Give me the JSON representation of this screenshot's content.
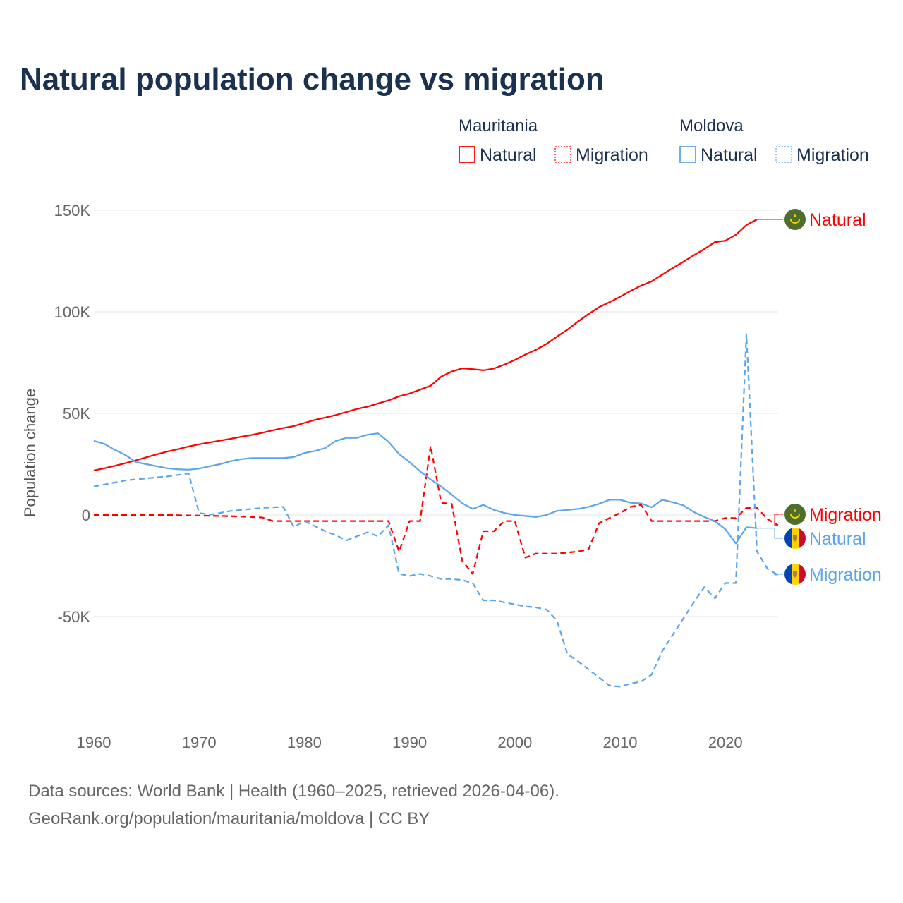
{
  "title": "Natural population change vs migration",
  "footer": {
    "line1": "Data sources: World Bank | Health (1960–2025, retrieved 2026-04-06).",
    "line2": "GeoRank.org/population/mauritania/moldova | CC BY"
  },
  "legend": {
    "groups": [
      {
        "country": "Mauritania",
        "color": "#ff0000",
        "items": [
          "Natural",
          "Migration"
        ]
      },
      {
        "country": "Moldova",
        "color": "#5aa5eb",
        "items": [
          "Natural",
          "Migration"
        ]
      }
    ]
  },
  "chart_data": {
    "type": "line",
    "title": "Natural population change vs migration",
    "xlabel": "",
    "ylabel": "Population change",
    "xlim": [
      1960,
      2025
    ],
    "ylim": [
      -100000,
      160000
    ],
    "x_ticks": [
      1960,
      1970,
      1980,
      1990,
      2000,
      2010,
      2020
    ],
    "y_ticks": [
      {
        "v": 150000,
        "label": "150K"
      },
      {
        "v": 100000,
        "label": "100K"
      },
      {
        "v": 50000,
        "label": "50K"
      },
      {
        "v": 0,
        "label": "0"
      },
      {
        "v": -50000,
        "label": "-50K"
      }
    ],
    "grid": true,
    "series": [
      {
        "name": "Mauritania Natural",
        "label": "Natural",
        "country": "mauritania",
        "color": "#ff0000",
        "dash": false,
        "start": 1960,
        "values": [
          21900,
          23000,
          24200,
          25500,
          26900,
          28400,
          29900,
          31200,
          32400,
          33700,
          34800,
          35700,
          36600,
          37500,
          38500,
          39400,
          40500,
          41700,
          42800,
          43800,
          45300,
          46800,
          48000,
          49200,
          50700,
          52200,
          53300,
          54900,
          56400,
          58400,
          59800,
          61700,
          63600,
          68100,
          70600,
          72200,
          71800,
          71200,
          72100,
          74000,
          76300,
          79000,
          81300,
          84200,
          87800,
          91200,
          95200,
          98900,
          102300,
          104800,
          107400,
          110300,
          112900,
          115000,
          118300,
          121500,
          124600,
          127800,
          130900,
          134300,
          135000,
          137900,
          142700,
          145500
        ]
      },
      {
        "name": "Mauritania Migration",
        "label": "Migration",
        "country": "mauritania",
        "color": "#ff0000",
        "dash": true,
        "start": 1960,
        "values": [
          0,
          0,
          0,
          0,
          0,
          0,
          0,
          0,
          -100,
          -200,
          -300,
          -400,
          -500,
          -600,
          -800,
          -1000,
          -1200,
          -3000,
          -3000,
          -3000,
          -3000,
          -3000,
          -3000,
          -3000,
          -3000,
          -3000,
          -3000,
          -3000,
          -3000,
          -18000,
          -3000,
          -3000,
          34000,
          6000,
          5500,
          -22500,
          -29000,
          -8000,
          -8000,
          -3000,
          -3000,
          -21000,
          -19000,
          -19000,
          -19000,
          -18500,
          -18000,
          -17000,
          -4000,
          -1500,
          1000,
          4000,
          5000,
          -3000,
          -3000,
          -3000,
          -3000,
          -3000,
          -3000,
          -3000,
          -1500,
          -1500,
          3500,
          3500,
          -2000,
          -5000
        ]
      },
      {
        "name": "Moldova Natural",
        "label": "Natural",
        "country": "moldova",
        "color": "#5aa5eb",
        "dash": false,
        "start": 1960,
        "values": [
          36500,
          35000,
          32000,
          29500,
          26000,
          25000,
          24000,
          23000,
          22500,
          22300,
          22800,
          24000,
          25000,
          26500,
          27500,
          28000,
          28000,
          28000,
          28000,
          28500,
          30500,
          31500,
          33000,
          36500,
          38000,
          38000,
          39500,
          40200,
          36000,
          30000,
          26000,
          21500,
          17500,
          14000,
          10000,
          5800,
          3000,
          5000,
          2500,
          1000,
          0,
          -500,
          -1000,
          0,
          2000,
          2500,
          3000,
          4000,
          5500,
          7500,
          7500,
          6000,
          5700,
          3800,
          7500,
          6300,
          4800,
          1500,
          -1000,
          -3000,
          -7000,
          -14000,
          -6000,
          -6500
        ]
      },
      {
        "name": "Moldova Migration",
        "label": "Migration",
        "country": "moldova",
        "color": "#5aa5eb",
        "dash": true,
        "start": 1960,
        "values": [
          14000,
          15000,
          16000,
          17000,
          17500,
          18000,
          18500,
          19000,
          19700,
          20500,
          1000,
          200,
          1000,
          2000,
          2500,
          3000,
          3500,
          3800,
          4000,
          -6000,
          -3000,
          -5500,
          -8000,
          -10000,
          -12500,
          -10500,
          -8500,
          -10500,
          -5000,
          -29000,
          -30000,
          -29000,
          -30000,
          -31500,
          -31500,
          -32000,
          -33500,
          -42000,
          -42000,
          -43000,
          -44000,
          -45000,
          -45500,
          -46500,
          -52000,
          -68500,
          -72000,
          -76000,
          -80000,
          -84000,
          -84500,
          -83000,
          -82000,
          -78500,
          -67000,
          -59000,
          -51000,
          -43000,
          -35500,
          -41000,
          -33500,
          -33500,
          89000,
          -18000,
          -26500,
          -29500
        ]
      }
    ]
  }
}
